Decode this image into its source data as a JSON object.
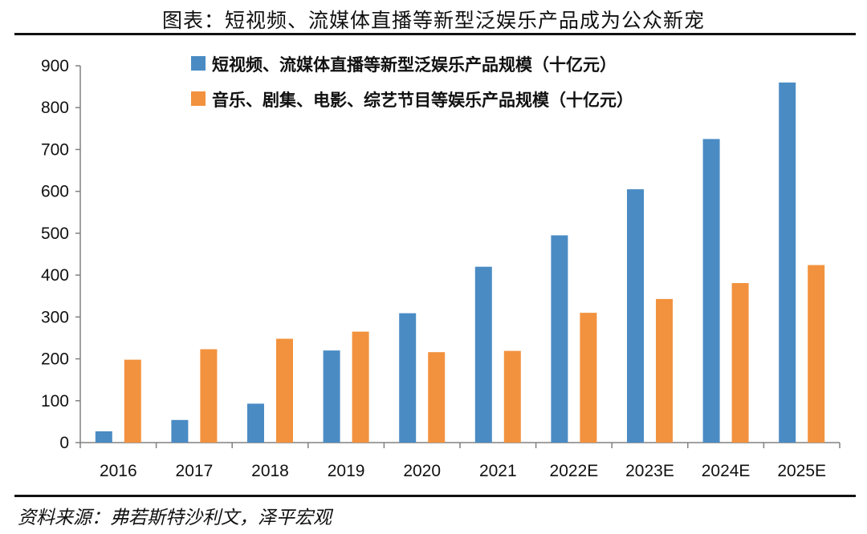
{
  "title": "图表：短视频、流媒体直播等新型泛娱乐产品成为公众新宠",
  "source": "资料来源：弗若斯特沙利文，泽平宏观",
  "colors": {
    "series_blue": "#4A8BC4",
    "series_orange": "#F2923E",
    "axis": "#808080"
  },
  "chart_data": {
    "type": "bar",
    "categories": [
      "2016",
      "2017",
      "2018",
      "2019",
      "2020",
      "2021",
      "2022E",
      "2023E",
      "2024E",
      "2025E"
    ],
    "series": [
      {
        "name": "短视频、流媒体直播等新型泛娱乐产品规模（十亿元）",
        "color": "#4A8BC4",
        "values": [
          27,
          54,
          93,
          220,
          309,
          420,
          495,
          605,
          725,
          860
        ]
      },
      {
        "name": "音乐、剧集、电影、综艺节目等娱乐产品规模（十亿元）",
        "color": "#F2923E",
        "values": [
          198,
          223,
          248,
          265,
          216,
          219,
          310,
          343,
          381,
          424
        ]
      }
    ],
    "ylim": [
      0,
      900
    ],
    "yticks": [
      0,
      100,
      200,
      300,
      400,
      500,
      600,
      700,
      800,
      900
    ],
    "grid": false,
    "legend": "top-right"
  }
}
